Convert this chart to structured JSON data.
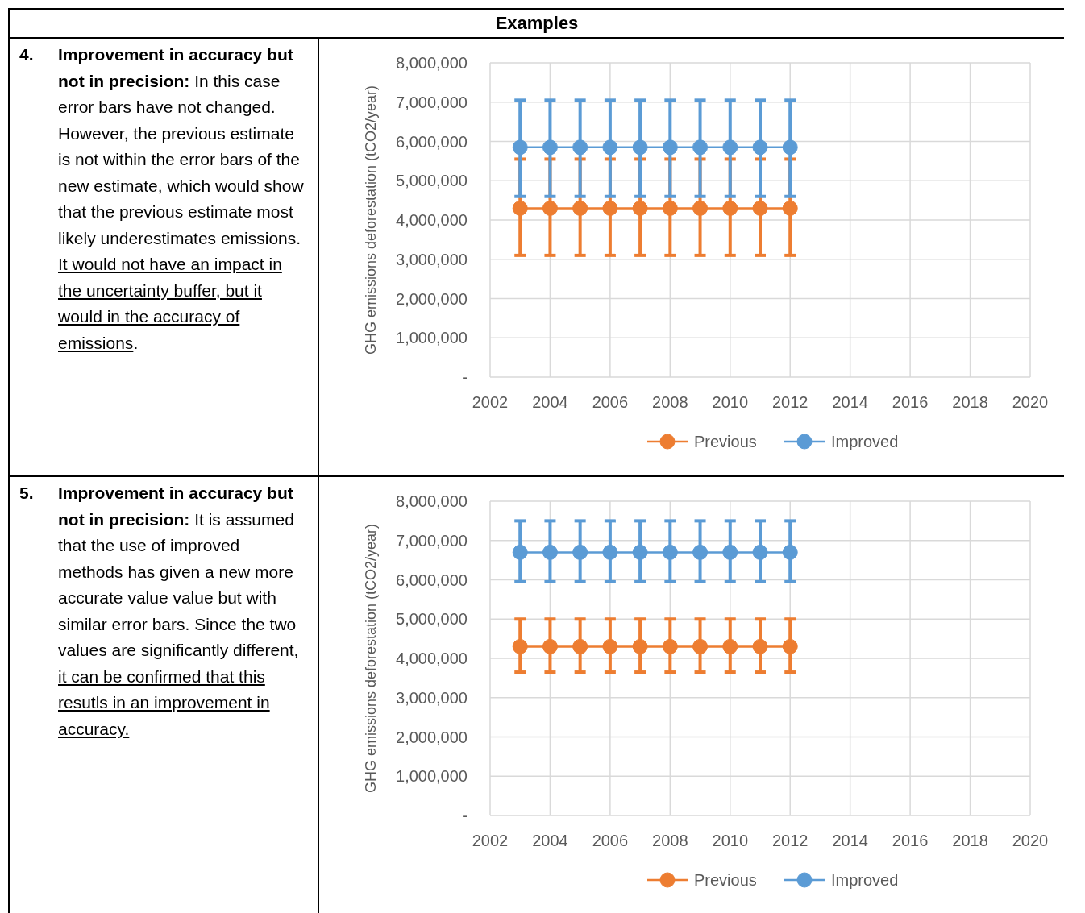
{
  "chart_data": [
    {
      "type": "other",
      "title": "Examples"
    },
    {
      "type": "other",
      "subtitle": "4.",
      "title": "Improvement in accuracy but not in precision:",
      "annotations": [
        "In this case error bars have not changed. However, the previous estimate is not within the error bars of the new estimate, which would show that the previous estimate most likely underestimates emissions.",
        "It would not have an impact in the uncertainty buffer, but it would in the accuracy of emissions",
        "."
      ]
    },
    {
      "type": "line",
      "ylabel": "GHG emissions deforestation (tCO2/year)",
      "x": [
        2003,
        2004,
        2005,
        2006,
        2007,
        2008,
        2009,
        2010,
        2011,
        2012
      ],
      "xlim": [
        2002,
        2020
      ],
      "xticks": [
        2002,
        2004,
        2006,
        2008,
        2010,
        2012,
        2014,
        2016,
        2018,
        2020
      ],
      "ylim": [
        0,
        8000000
      ],
      "yticks": [
        {
          "value": 0,
          "label": "-"
        },
        {
          "value": 1000000,
          "label": "1,000,000"
        },
        {
          "value": 2000000,
          "label": "2,000,000"
        },
        {
          "value": 3000000,
          "label": "3,000,000"
        },
        {
          "value": 4000000,
          "label": "4,000,000"
        },
        {
          "value": 5000000,
          "label": "5,000,000"
        },
        {
          "value": 6000000,
          "label": "6,000,000"
        },
        {
          "value": 7000000,
          "label": "7,000,000"
        },
        {
          "value": 8000000,
          "label": "8,000,000"
        }
      ],
      "grid": true,
      "legend": "bottom",
      "marker": "circle",
      "series": [
        {
          "name": "Previous",
          "color": "#ed7d31",
          "values": [
            4300000,
            4300000,
            4300000,
            4300000,
            4300000,
            4300000,
            4300000,
            4300000,
            4300000,
            4300000
          ],
          "errors": [
            [
              3100000,
              5550000
            ],
            [
              3100000,
              5550000
            ],
            [
              3100000,
              5550000
            ],
            [
              3100000,
              5550000
            ],
            [
              3100000,
              5550000
            ],
            [
              3100000,
              5550000
            ],
            [
              3100000,
              5550000
            ],
            [
              3100000,
              5550000
            ],
            [
              3100000,
              5550000
            ],
            [
              3100000,
              5550000
            ]
          ]
        },
        {
          "name": "Improved",
          "color": "#5b9bd5",
          "values": [
            5850000,
            5850000,
            5850000,
            5850000,
            5850000,
            5850000,
            5850000,
            5850000,
            5850000,
            5850000
          ],
          "errors": [
            [
              4600000,
              7050000
            ],
            [
              4600000,
              7050000
            ],
            [
              4600000,
              7050000
            ],
            [
              4600000,
              7050000
            ],
            [
              4600000,
              7050000
            ],
            [
              4600000,
              7050000
            ],
            [
              4600000,
              7050000
            ],
            [
              4600000,
              7050000
            ],
            [
              4600000,
              7050000
            ],
            [
              4600000,
              7050000
            ]
          ]
        }
      ]
    },
    {
      "type": "other",
      "subtitle": "5.",
      "title": "Improvement in accuracy but not in precision:",
      "annotations": [
        "It is assumed that the use of improved methods has given a new more accurate value value but with similar error bars. Since the two values are significantly different,",
        "it can be confirmed that this resutls in an improvement in accuracy."
      ]
    },
    {
      "type": "line",
      "ylabel": "GHG emissions deforestation (tCO2/year)",
      "x": [
        2003,
        2004,
        2005,
        2006,
        2007,
        2008,
        2009,
        2010,
        2011,
        2012
      ],
      "xlim": [
        2002,
        2020
      ],
      "xticks": [
        2002,
        2004,
        2006,
        2008,
        2010,
        2012,
        2014,
        2016,
        2018,
        2020
      ],
      "ylim": [
        0,
        8000000
      ],
      "yticks": [
        {
          "value": 0,
          "label": "-"
        },
        {
          "value": 1000000,
          "label": "1,000,000"
        },
        {
          "value": 2000000,
          "label": "2,000,000"
        },
        {
          "value": 3000000,
          "label": "3,000,000"
        },
        {
          "value": 4000000,
          "label": "4,000,000"
        },
        {
          "value": 5000000,
          "label": "5,000,000"
        },
        {
          "value": 6000000,
          "label": "6,000,000"
        },
        {
          "value": 7000000,
          "label": "7,000,000"
        },
        {
          "value": 8000000,
          "label": "8,000,000"
        }
      ],
      "grid": true,
      "legend": "bottom",
      "marker": "circle",
      "series": [
        {
          "name": "Previous",
          "color": "#ed7d31",
          "values": [
            4300000,
            4300000,
            4300000,
            4300000,
            4300000,
            4300000,
            4300000,
            4300000,
            4300000,
            4300000
          ],
          "errors": [
            [
              3650000,
              5000000
            ],
            [
              3650000,
              5000000
            ],
            [
              3650000,
              5000000
            ],
            [
              3650000,
              5000000
            ],
            [
              3650000,
              5000000
            ],
            [
              3650000,
              5000000
            ],
            [
              3650000,
              5000000
            ],
            [
              3650000,
              5000000
            ],
            [
              3650000,
              5000000
            ],
            [
              3650000,
              5000000
            ]
          ]
        },
        {
          "name": "Improved",
          "color": "#5b9bd5",
          "values": [
            6700000,
            6700000,
            6700000,
            6700000,
            6700000,
            6700000,
            6700000,
            6700000,
            6700000,
            6700000
          ],
          "errors": [
            [
              5950000,
              7500000
            ],
            [
              5950000,
              7500000
            ],
            [
              5950000,
              7500000
            ],
            [
              5950000,
              7500000
            ],
            [
              5950000,
              7500000
            ],
            [
              5950000,
              7500000
            ],
            [
              5950000,
              7500000
            ],
            [
              5950000,
              7500000
            ],
            [
              5950000,
              7500000
            ],
            [
              5950000,
              7500000
            ]
          ]
        }
      ]
    }
  ]
}
